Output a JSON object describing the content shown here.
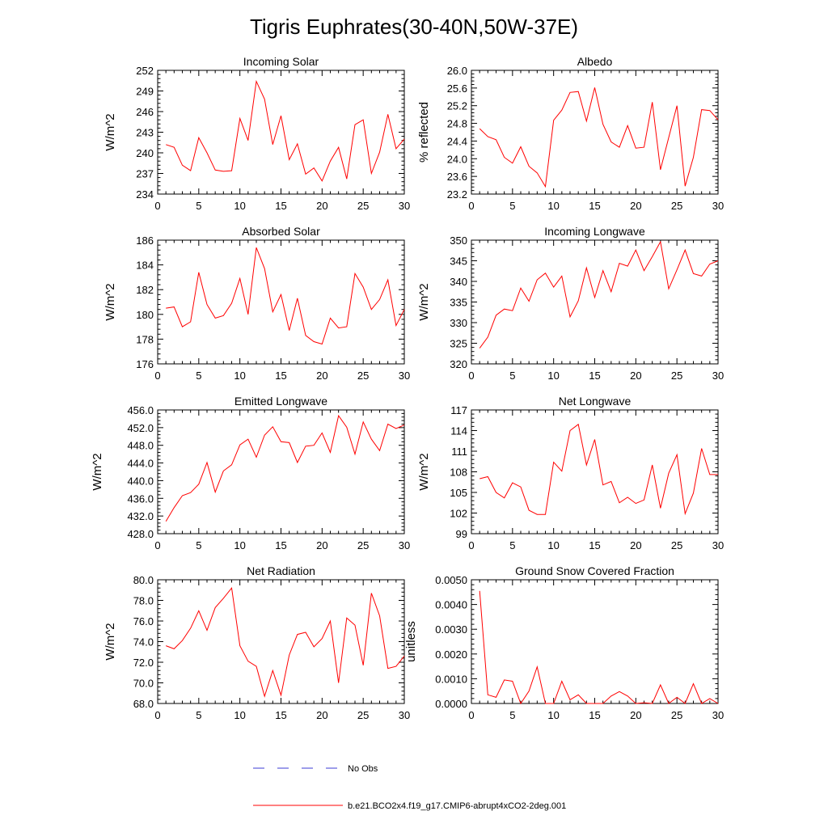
{
  "title": "Tigris Euphrates(30-40N,50W-37E)",
  "legend": {
    "obs_label": "No Obs",
    "obs_color": "#3b3bd6",
    "model_label": "b.e21.BCO2x4.f19_g17.CMIP6-abrupt4xCO2-2deg.001",
    "model_color": "#ff0000"
  },
  "chart_data": [
    {
      "type": "line",
      "title": "Incoming Solar",
      "ylabel": "W/m^2",
      "xlim": [
        0,
        30
      ],
      "ylim": [
        234,
        252
      ],
      "xticks": [
        "0",
        "5",
        "10",
        "15",
        "20",
        "25",
        "30"
      ],
      "yticks": [
        "234",
        "237",
        "240",
        "243",
        "246",
        "249",
        "252"
      ],
      "x": [
        1,
        2,
        3,
        4,
        5,
        6,
        7,
        8,
        9,
        10,
        11,
        12,
        13,
        14,
        15,
        16,
        17,
        18,
        19,
        20,
        21,
        22,
        23,
        24,
        25,
        26,
        27,
        28,
        29,
        30
      ],
      "values": [
        241.2,
        240.8,
        238.2,
        237.4,
        242.2,
        240.0,
        237.5,
        237.3,
        237.4,
        245.0,
        241.8,
        250.4,
        247.8,
        241.2,
        245.4,
        239.0,
        241.3,
        236.9,
        237.8,
        235.9,
        238.8,
        240.8,
        236.2,
        244.1,
        244.8,
        237.0,
        240.1,
        245.6,
        240.6,
        242.0
      ]
    },
    {
      "type": "line",
      "title": "Albedo",
      "ylabel": "% reflected",
      "xlim": [
        0,
        30
      ],
      "ylim": [
        23.2,
        26.0
      ],
      "xticks": [
        "0",
        "5",
        "10",
        "15",
        "20",
        "25",
        "30"
      ],
      "yticks": [
        "23.2",
        "23.6",
        "24.0",
        "24.4",
        "24.8",
        "25.2",
        "25.6",
        "26.0"
      ],
      "x": [
        1,
        2,
        3,
        4,
        5,
        6,
        7,
        8,
        9,
        10,
        11,
        12,
        13,
        14,
        15,
        16,
        17,
        18,
        19,
        20,
        21,
        22,
        23,
        24,
        25,
        26,
        27,
        28,
        29,
        30
      ],
      "values": [
        24.68,
        24.5,
        24.43,
        24.03,
        23.9,
        24.27,
        23.83,
        23.68,
        23.37,
        24.87,
        25.1,
        25.5,
        25.52,
        24.85,
        25.61,
        24.78,
        24.38,
        24.26,
        24.75,
        24.24,
        24.26,
        25.28,
        23.75,
        24.48,
        25.2,
        23.38,
        24.03,
        25.11,
        25.09,
        24.88
      ]
    },
    {
      "type": "line",
      "title": "Absorbed Solar",
      "ylabel": "W/m^2",
      "xlim": [
        0,
        30
      ],
      "ylim": [
        176,
        186
      ],
      "xticks": [
        "0",
        "5",
        "10",
        "15",
        "20",
        "25",
        "30"
      ],
      "yticks": [
        "176",
        "178",
        "180",
        "182",
        "184",
        "186"
      ],
      "x": [
        1,
        2,
        3,
        4,
        5,
        6,
        7,
        8,
        9,
        10,
        11,
        12,
        13,
        14,
        15,
        16,
        17,
        18,
        19,
        20,
        21,
        22,
        23,
        24,
        25,
        26,
        27,
        28,
        29,
        30
      ],
      "values": [
        180.5,
        180.6,
        179.0,
        179.4,
        183.4,
        180.8,
        179.7,
        179.9,
        180.9,
        182.9,
        180.0,
        185.4,
        183.7,
        180.2,
        181.6,
        178.7,
        181.3,
        178.3,
        177.8,
        177.6,
        179.7,
        178.9,
        179.0,
        183.3,
        182.2,
        180.4,
        181.2,
        182.8,
        179.1,
        180.4
      ]
    },
    {
      "type": "line",
      "title": "Incoming Longwave",
      "ylabel": "W/m^2",
      "xlim": [
        0,
        30
      ],
      "ylim": [
        320,
        350
      ],
      "xticks": [
        "0",
        "5",
        "10",
        "15",
        "20",
        "25",
        "30"
      ],
      "yticks": [
        "320",
        "325",
        "330",
        "335",
        "340",
        "345",
        "350"
      ],
      "x": [
        1,
        2,
        3,
        4,
        5,
        6,
        7,
        8,
        9,
        10,
        11,
        12,
        13,
        14,
        15,
        16,
        17,
        18,
        19,
        20,
        21,
        22,
        23,
        24,
        25,
        26,
        27,
        28,
        29,
        30
      ],
      "values": [
        323.8,
        326.5,
        331.8,
        333.3,
        332.9,
        338.4,
        335.2,
        340.4,
        342.0,
        338.6,
        341.3,
        331.4,
        335.3,
        343.3,
        336.1,
        342.6,
        337.5,
        344.4,
        343.7,
        347.6,
        342.6,
        346.0,
        349.6,
        338.2,
        342.8,
        347.6,
        341.9,
        341.3,
        344.2,
        345.0
      ]
    },
    {
      "type": "line",
      "title": "Emitted Longwave",
      "ylabel": "W/m^2",
      "xlim": [
        0,
        30
      ],
      "ylim": [
        428,
        456
      ],
      "xticks": [
        "0",
        "5",
        "10",
        "15",
        "20",
        "25",
        "30"
      ],
      "yticks": [
        "428.0",
        "432.0",
        "436.0",
        "440.0",
        "444.0",
        "448.0",
        "452.0",
        "456.0"
      ],
      "x": [
        1,
        2,
        3,
        4,
        5,
        6,
        7,
        8,
        9,
        10,
        11,
        12,
        13,
        14,
        15,
        16,
        17,
        18,
        19,
        20,
        21,
        22,
        23,
        24,
        25,
        26,
        27,
        28,
        29,
        30
      ],
      "values": [
        430.8,
        433.9,
        436.6,
        437.3,
        439.2,
        444.1,
        437.4,
        442.2,
        443.6,
        448.1,
        449.4,
        445.3,
        450.3,
        452.2,
        448.8,
        448.6,
        444.1,
        447.8,
        448.0,
        450.8,
        446.4,
        454.7,
        452.1,
        446.0,
        453.3,
        449.4,
        446.8,
        452.8,
        451.8,
        452.6
      ]
    },
    {
      "type": "line",
      "title": "Net Longwave",
      "ylabel": "W/m^2",
      "xlim": [
        0,
        30
      ],
      "ylim": [
        99,
        117
      ],
      "xticks": [
        "0",
        "5",
        "10",
        "15",
        "20",
        "25",
        "30"
      ],
      "yticks": [
        "99",
        "102",
        "105",
        "108",
        "111",
        "114",
        "117"
      ],
      "x": [
        1,
        2,
        3,
        4,
        5,
        6,
        7,
        8,
        9,
        10,
        11,
        12,
        13,
        14,
        15,
        16,
        17,
        18,
        19,
        20,
        21,
        22,
        23,
        24,
        25,
        26,
        27,
        28,
        29,
        30
      ],
      "values": [
        107.0,
        107.3,
        105.0,
        104.2,
        106.4,
        105.8,
        102.4,
        101.8,
        101.8,
        109.4,
        108.1,
        114.0,
        114.9,
        109.0,
        112.7,
        106.1,
        106.6,
        103.5,
        104.3,
        103.4,
        103.9,
        109.0,
        102.7,
        107.8,
        110.5,
        101.9,
        104.9,
        111.4,
        107.6,
        107.6
      ]
    },
    {
      "type": "line",
      "title": "Net Radiation",
      "ylabel": "W/m^2",
      "xlim": [
        0,
        30
      ],
      "ylim": [
        68,
        80
      ],
      "xticks": [
        "0",
        "5",
        "10",
        "15",
        "20",
        "25",
        "30"
      ],
      "yticks": [
        "68.0",
        "70.0",
        "72.0",
        "74.0",
        "76.0",
        "78.0",
        "80.0"
      ],
      "x": [
        1,
        2,
        3,
        4,
        5,
        6,
        7,
        8,
        9,
        10,
        11,
        12,
        13,
        14,
        15,
        16,
        17,
        18,
        19,
        20,
        21,
        22,
        23,
        24,
        25,
        26,
        27,
        28,
        29,
        30
      ],
      "values": [
        73.6,
        73.3,
        74.1,
        75.3,
        77.0,
        75.1,
        77.3,
        78.2,
        79.2,
        73.6,
        72.1,
        71.6,
        68.7,
        71.2,
        68.8,
        72.7,
        74.7,
        74.9,
        73.5,
        74.3,
        76.0,
        70.0,
        76.3,
        75.6,
        71.7,
        78.7,
        76.5,
        71.4,
        71.6,
        72.6
      ]
    },
    {
      "type": "line",
      "title": "Ground Snow Covered Fraction",
      "ylabel": "unitless",
      "xlim": [
        0,
        30
      ],
      "ylim": [
        0,
        0.005
      ],
      "xticks": [
        "0",
        "5",
        "10",
        "15",
        "20",
        "25",
        "30"
      ],
      "yticks": [
        "0.0000",
        "0.0010",
        "0.0020",
        "0.0030",
        "0.0040",
        "0.0050"
      ],
      "x": [
        1,
        2,
        3,
        4,
        5,
        6,
        7,
        8,
        9,
        10,
        11,
        12,
        13,
        14,
        15,
        16,
        17,
        18,
        19,
        20,
        21,
        22,
        23,
        24,
        25,
        26,
        27,
        28,
        29,
        30
      ],
      "values": [
        0.00455,
        0.00035,
        0.00025,
        0.00095,
        0.0009,
        0.0,
        0.0005,
        0.00148,
        0.0,
        0.0,
        0.0009,
        0.00015,
        0.00035,
        0.0,
        0.0,
        0.0,
        0.0003,
        0.00048,
        0.0003,
        0.0,
        3e-05,
        0.0,
        0.00075,
        0.0,
        0.00025,
        0.0,
        0.0008,
        0.0,
        0.0002,
        0.0
      ]
    }
  ]
}
